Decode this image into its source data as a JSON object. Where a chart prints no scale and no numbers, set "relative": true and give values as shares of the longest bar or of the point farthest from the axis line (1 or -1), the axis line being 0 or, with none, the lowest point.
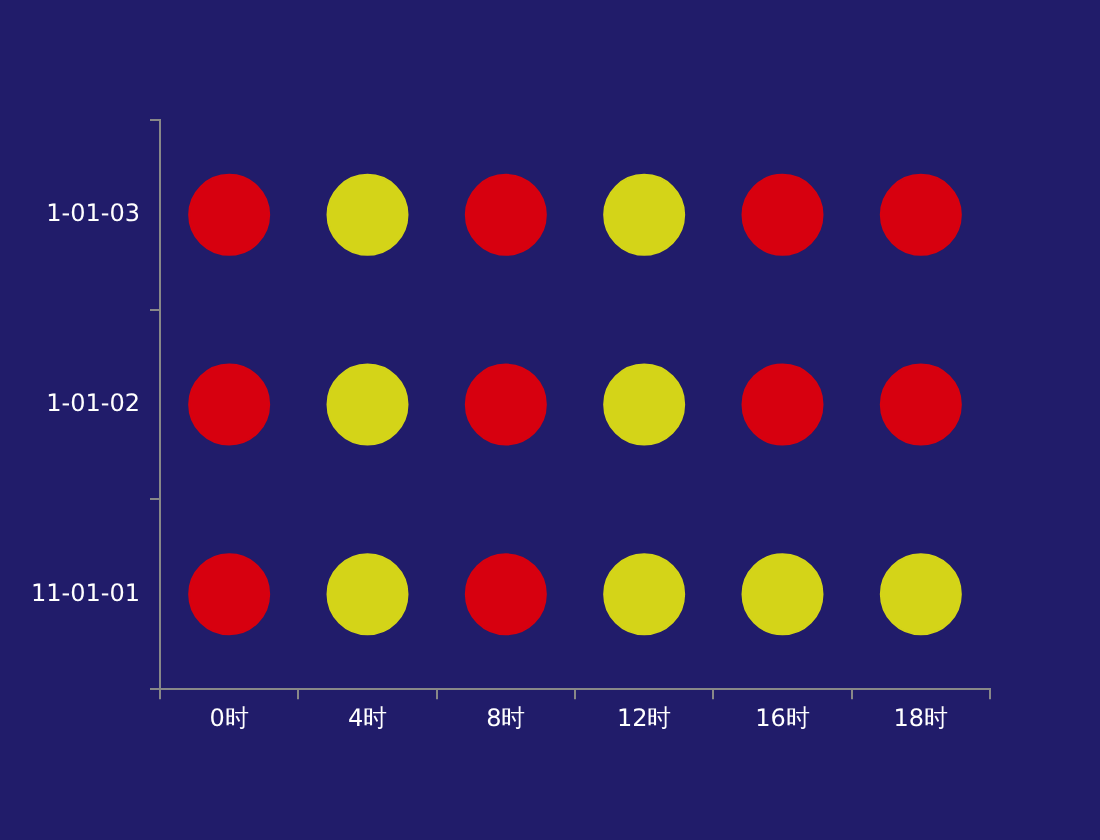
{
  "chart_data": {
    "type": "scatter",
    "relative": true,
    "categories": [
      "0时",
      "4时",
      "8时",
      "12时",
      "16时",
      "18时"
    ],
    "marker": "circle",
    "annotations": [
      "1-01-03",
      "1-01-02",
      "11-01-01"
    ],
    "series": [
      {
        "color": "#d7000f",
        "x": [
          "0时",
          "8时",
          "16时",
          "18时",
          "0时",
          "8时",
          "16时",
          "18时",
          "0时",
          "8时"
        ],
        "values": [
          1,
          1,
          1,
          1,
          0.6,
          0.6,
          0.6,
          0.6,
          0.2,
          0.2
        ]
      },
      {
        "color": "#d4d418",
        "x": [
          "4时",
          "12时",
          "4时",
          "12时",
          "4时",
          "12时",
          "16时",
          "18时"
        ],
        "values": [
          1,
          1,
          0.6,
          0.6,
          0.2,
          0.2,
          0.2,
          0.2
        ]
      }
    ]
  }
}
